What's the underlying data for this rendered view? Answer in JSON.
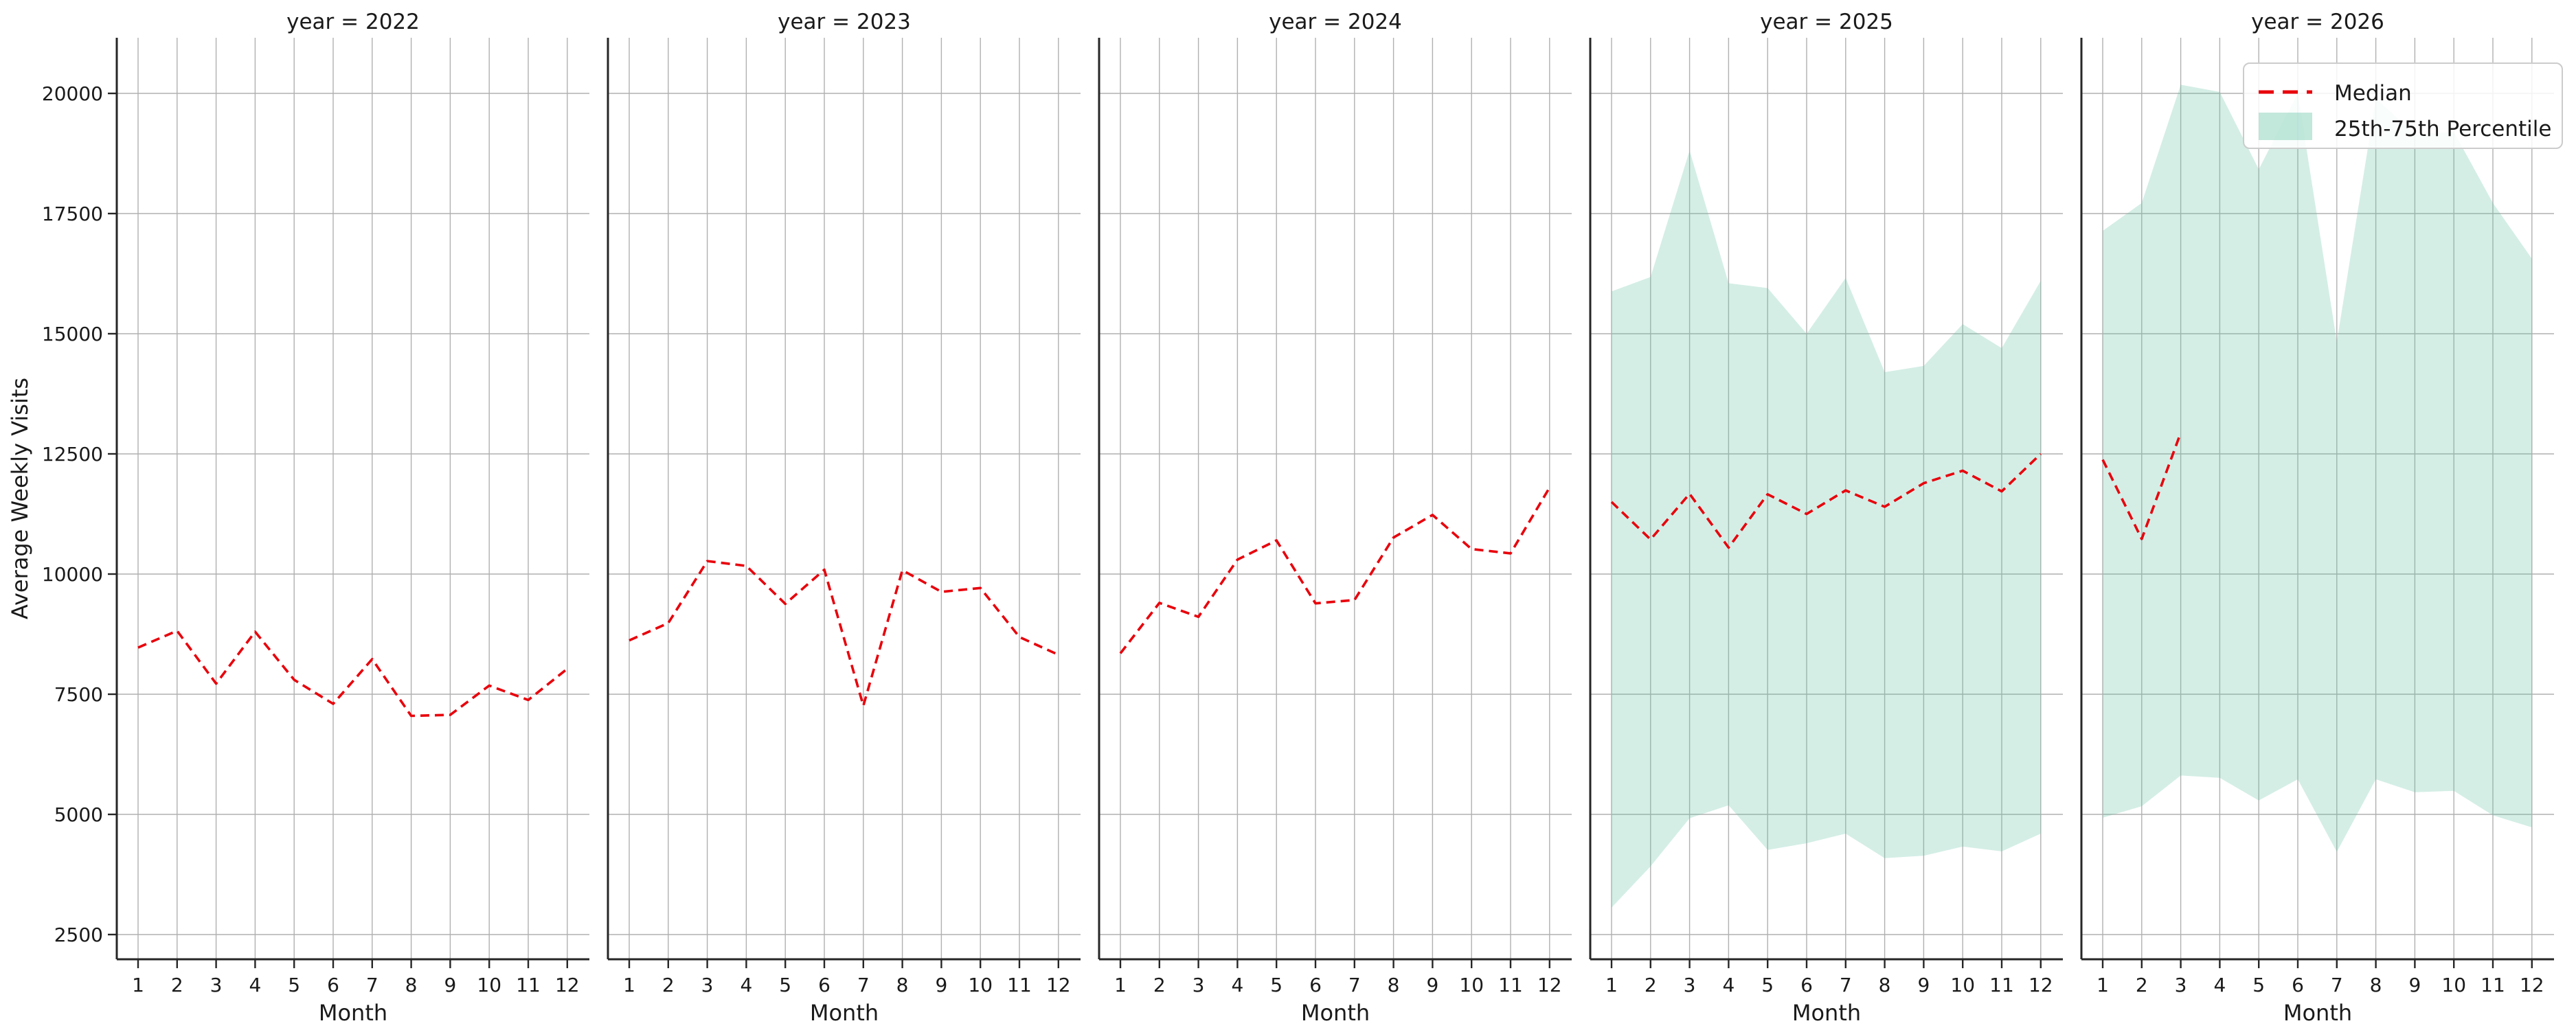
{
  "figure": {
    "background": "#ffffff"
  },
  "axes": {
    "ylabel": "Average Weekly Visits",
    "xlabel": "Month",
    "y_ticks": [
      2500,
      5000,
      7500,
      10000,
      12500,
      15000,
      17500,
      20000
    ],
    "x_ticks": [
      1,
      2,
      3,
      4,
      5,
      6,
      7,
      8,
      9,
      10,
      11,
      12
    ],
    "ylim": [
      2000,
      21160
    ],
    "grid": true
  },
  "legend": {
    "position": "top-right",
    "items": [
      {
        "label": "Median",
        "type": "dashed-line",
        "color": "#e8000b"
      },
      {
        "label": "25th-75th Percentile",
        "type": "patch",
        "color": "#66c2a5",
        "alpha": 0.3
      }
    ]
  },
  "colors": {
    "median": "#e8000b",
    "band_fill": "rgba(102,194,165,0.28)",
    "grid": "#b0b0b0",
    "spine": "#262626",
    "text": "#1a1a1a",
    "legend_border": "#cccccc"
  },
  "chart_data": {
    "type": "line",
    "facet_by": "year",
    "title": "",
    "xlabel": "Month",
    "ylabel": "Average Weekly Visits",
    "x": [
      1,
      2,
      3,
      4,
      5,
      6,
      7,
      8,
      9,
      10,
      11,
      12
    ],
    "facets": [
      {
        "title": "year = 2022",
        "year": 2022,
        "median": [
          8470,
          8820,
          7720,
          8800,
          7800,
          7300,
          8230,
          7050,
          7070,
          7680,
          7380,
          8030
        ],
        "p25": null,
        "p75": null
      },
      {
        "title": "year = 2023",
        "year": 2023,
        "median": [
          8620,
          8980,
          10270,
          10170,
          9380,
          10090,
          7260,
          10080,
          9630,
          9710,
          8690,
          8320
        ],
        "p25": null,
        "p75": null
      },
      {
        "title": "year = 2024",
        "year": 2024,
        "median": [
          8350,
          9400,
          9110,
          10300,
          10700,
          9390,
          9460,
          10760,
          11230,
          10520,
          10430,
          11800
        ],
        "p25": null,
        "p75": null
      },
      {
        "title": "year = 2025",
        "year": 2025,
        "median": [
          11500,
          10720,
          11670,
          10550,
          11660,
          11250,
          11740,
          11400,
          11890,
          12150,
          11720,
          12500
        ],
        "p25": [
          3060,
          3920,
          4920,
          5190,
          4260,
          4400,
          4600,
          4090,
          4140,
          4330,
          4230,
          4600
        ],
        "p75": [
          15880,
          16180,
          18810,
          16050,
          15950,
          15000,
          16160,
          14200,
          14330,
          15200,
          14700,
          16100
        ]
      },
      {
        "title": "year = 2026",
        "year": 2026,
        "median": [
          12380,
          10730,
          12940,
          null,
          null,
          null,
          null,
          null,
          null,
          null,
          null,
          null
        ],
        "p25": [
          4930,
          5170,
          5810,
          5760,
          5290,
          5730,
          4220,
          5730,
          5460,
          5490,
          4980,
          4730
        ],
        "p75": [
          17140,
          17720,
          20180,
          20030,
          18420,
          20000,
          14830,
          19900,
          19150,
          19200,
          17720,
          16560
        ]
      }
    ]
  }
}
